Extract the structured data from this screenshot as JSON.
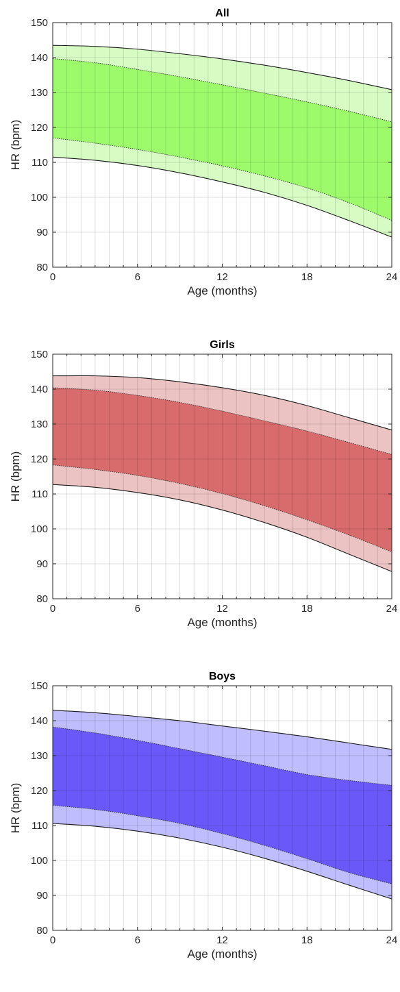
{
  "chart_data": [
    {
      "type": "area",
      "title": "All",
      "xlabel": "Age (months)",
      "ylabel": "HR (bpm)",
      "xlim": [
        0,
        24
      ],
      "ylim": [
        80,
        150
      ],
      "xticks": [
        0,
        6,
        12,
        18,
        24
      ],
      "yticks": [
        80,
        90,
        100,
        110,
        120,
        130,
        140,
        150
      ],
      "grid": true,
      "colors": {
        "outer": "#d6fcc4",
        "inner": "#9dfb6b"
      },
      "x": [
        0,
        3,
        6,
        9,
        12,
        15,
        18,
        21,
        24
      ],
      "series": [
        {
          "values": [
            143.5,
            143.2,
            142.4,
            141.1,
            139.6,
            137.8,
            135.7,
            133.4,
            130.8
          ]
        },
        {
          "values": [
            139.7,
            138.5,
            136.6,
            134.5,
            132.2,
            129.8,
            127.3,
            124.6,
            121.6
          ]
        },
        {
          "values": [
            117.0,
            115.5,
            113.7,
            111.5,
            109.0,
            106.1,
            102.7,
            98.4,
            93.4
          ]
        },
        {
          "values": [
            111.5,
            110.6,
            109.1,
            107.0,
            104.4,
            101.4,
            97.7,
            93.3,
            88.6
          ]
        }
      ]
    },
    {
      "type": "area",
      "title": "Girls",
      "xlabel": "Age (months)",
      "ylabel": "HR (bpm)",
      "xlim": [
        0,
        24
      ],
      "ylim": [
        80,
        150
      ],
      "xticks": [
        0,
        6,
        12,
        18,
        24
      ],
      "yticks": [
        80,
        90,
        100,
        110,
        120,
        130,
        140,
        150
      ],
      "grid": true,
      "colors": {
        "outer": "#ecc3c3",
        "inner": "#d86b6b"
      },
      "x": [
        0,
        3,
        6,
        9,
        12,
        15,
        18,
        21,
        24
      ],
      "series": [
        {
          "values": [
            143.8,
            143.8,
            143.3,
            142.1,
            140.4,
            138.2,
            135.3,
            131.8,
            128.3
          ]
        },
        {
          "values": [
            140.4,
            139.7,
            138.2,
            136.2,
            133.7,
            130.9,
            128.0,
            124.7,
            121.3
          ]
        },
        {
          "values": [
            118.3,
            117.0,
            115.3,
            113.0,
            110.1,
            106.6,
            102.6,
            98.2,
            93.4
          ]
        },
        {
          "values": [
            112.7,
            111.9,
            110.4,
            108.3,
            105.4,
            101.8,
            97.6,
            92.7,
            87.8
          ]
        }
      ]
    },
    {
      "type": "area",
      "title": "Boys",
      "xlabel": "Age (months)",
      "ylabel": "HR (bpm)",
      "xlim": [
        0,
        24
      ],
      "ylim": [
        80,
        150
      ],
      "xticks": [
        0,
        6,
        12,
        18,
        24
      ],
      "yticks": [
        80,
        90,
        100,
        110,
        120,
        130,
        140,
        150
      ],
      "grid": true,
      "colors": {
        "outer": "#bfbdfc",
        "inner": "#6a58f8"
      },
      "x": [
        0,
        3,
        6,
        9,
        12,
        15,
        18,
        21,
        24
      ],
      "series": [
        {
          "values": [
            143.0,
            142.3,
            141.2,
            140.0,
            138.5,
            137.0,
            135.4,
            133.6,
            131.8
          ]
        },
        {
          "values": [
            138.2,
            136.5,
            134.4,
            132.0,
            129.6,
            127.1,
            124.6,
            122.9,
            121.5
          ]
        },
        {
          "values": [
            115.8,
            114.6,
            112.8,
            110.6,
            107.7,
            104.3,
            100.5,
            96.5,
            93.3
          ]
        },
        {
          "values": [
            110.6,
            109.8,
            108.4,
            106.4,
            103.8,
            100.6,
            96.9,
            92.9,
            89.0
          ]
        }
      ]
    }
  ]
}
